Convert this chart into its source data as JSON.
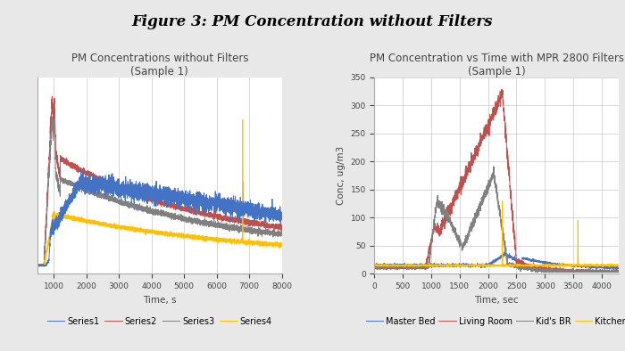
{
  "fig_title": "Figure 3: PM Concentration without Filters",
  "fig_title_fontsize": 12,
  "fig_title_fontstyle": "italic",
  "fig_title_fontweight": "bold",
  "background_color": "#e8e8e8",
  "plot_bg_color": "#ffffff",
  "left_title": "PM Concentrations without Filters",
  "left_subtitle": "(Sample 1)",
  "left_xlabel": "Time, s",
  "left_ylabel": "",
  "left_xlim": [
    500,
    8000
  ],
  "left_ylim": [
    -10,
    280
  ],
  "left_xticks": [
    1000,
    2000,
    3000,
    4000,
    5000,
    6000,
    7000,
    8000
  ],
  "left_series_colors": [
    "#4472C4",
    "#C0504D",
    "#808080",
    "#FFC000"
  ],
  "left_series_labels": [
    "Series1",
    "Series2",
    "Series3",
    "Series4"
  ],
  "right_title": "PM Concentration vs Time with MPR 2800 Filters",
  "right_subtitle": "(Sample 1)",
  "right_xlabel": "Time, sec",
  "right_ylabel": "Conc, ug/m3",
  "right_xlim": [
    0,
    4300
  ],
  "right_ylim": [
    0,
    350
  ],
  "right_xticks": [
    0,
    500,
    1000,
    1500,
    2000,
    2500,
    3000,
    3500,
    4000
  ],
  "right_yticks": [
    0,
    50,
    100,
    150,
    200,
    250,
    300,
    350
  ],
  "right_series_colors": [
    "#4472C4",
    "#C0504D",
    "#808080",
    "#FFC000"
  ],
  "right_series_labels": [
    "Master Bed",
    "Living Room",
    "Kid's BR",
    "Kitchen"
  ],
  "title_fontsize": 8.5,
  "axis_label_fontsize": 7.5,
  "tick_fontsize": 6.5,
  "legend_fontsize": 7
}
